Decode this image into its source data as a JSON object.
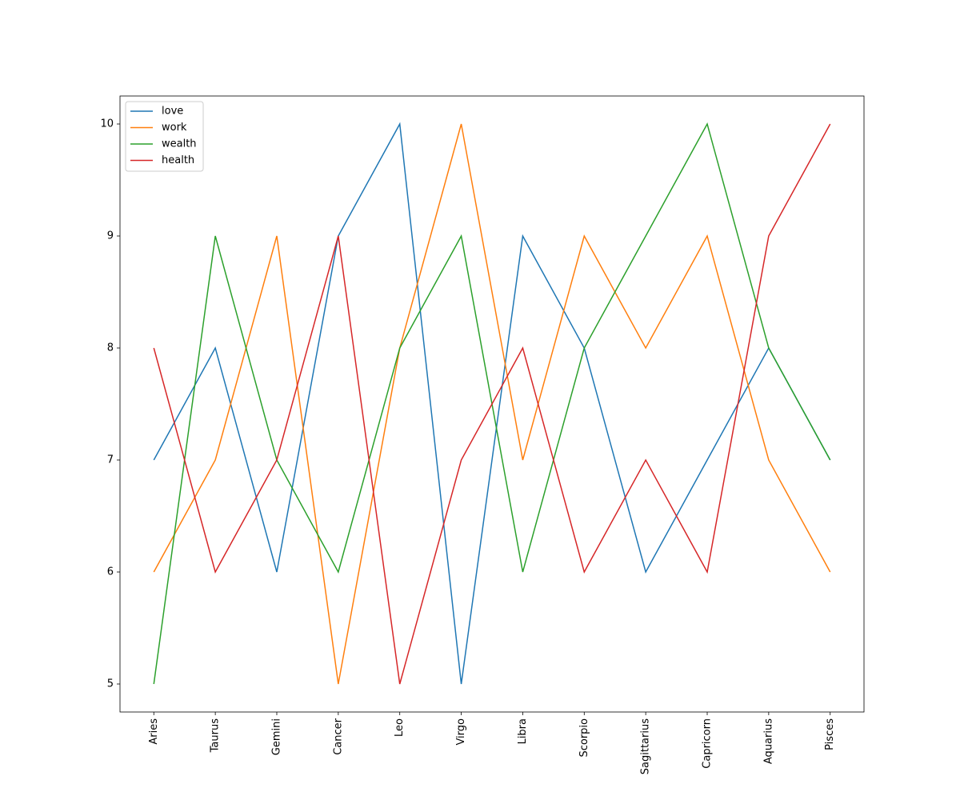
{
  "chart_data": {
    "type": "line",
    "categories": [
      "Aries",
      "Taurus",
      "Gemini",
      "Cancer",
      "Leo",
      "Virgo",
      "Libra",
      "Scorpio",
      "Sagittarius",
      "Capricorn",
      "Aquarius",
      "Pisces"
    ],
    "series": [
      {
        "name": "love",
        "color": "#1f77b4",
        "values": [
          7,
          8,
          6,
          9,
          10,
          5,
          9,
          8,
          6,
          7,
          8,
          7
        ]
      },
      {
        "name": "work",
        "color": "#ff7f0e",
        "values": [
          6,
          7,
          9,
          5,
          8,
          10,
          7,
          9,
          8,
          9,
          7,
          6
        ]
      },
      {
        "name": "wealth",
        "color": "#2ca02c",
        "values": [
          5,
          9,
          7,
          6,
          8,
          9,
          6,
          8,
          9,
          10,
          8,
          7
        ]
      },
      {
        "name": "health",
        "color": "#d62728",
        "values": [
          8,
          6,
          7,
          9,
          5,
          7,
          8,
          6,
          7,
          6,
          9,
          10
        ]
      }
    ],
    "ylim": [
      4.75,
      10.25
    ],
    "yticks": [
      5,
      6,
      7,
      8,
      9,
      10
    ],
    "grid": false,
    "legend": "upper left"
  }
}
